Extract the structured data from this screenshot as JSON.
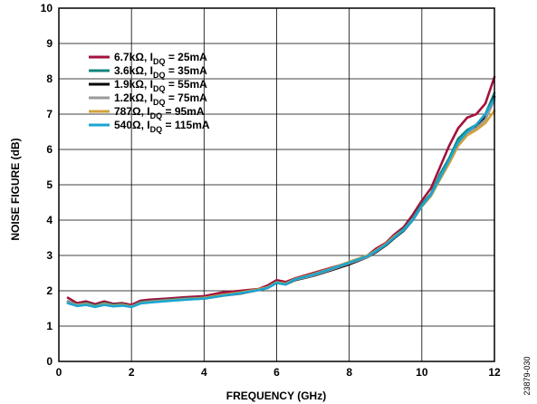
{
  "chart_data": {
    "type": "line",
    "xlabel": "FREQUENCY (GHz)",
    "ylabel": "NOISE FIGURE (dB)",
    "xlim": [
      0,
      12
    ],
    "ylim": [
      0,
      10
    ],
    "xticks": [
      "0",
      "2",
      "4",
      "6",
      "8",
      "10",
      "12"
    ],
    "yticks": [
      "0",
      "1",
      "2",
      "3",
      "4",
      "5",
      "6",
      "7",
      "8",
      "9",
      "10"
    ],
    "grid": true,
    "legend_position": "top-left",
    "figure_id": "23879-030",
    "x": [
      0.25,
      0.5,
      0.75,
      1.0,
      1.25,
      1.5,
      1.75,
      2.0,
      2.25,
      2.5,
      3.0,
      3.5,
      4.0,
      4.5,
      5.0,
      5.5,
      5.75,
      6.0,
      6.25,
      6.5,
      7.0,
      7.5,
      8.0,
      8.5,
      8.75,
      9.0,
      9.25,
      9.5,
      9.75,
      10.0,
      10.25,
      10.5,
      10.75,
      11.0,
      11.25,
      11.5,
      11.75,
      12.0
    ],
    "series": [
      {
        "name_main": "6.7kΩ, I",
        "name_sub": "DQ",
        "name_tail": " = 25mA",
        "color": "#A3123C",
        "values": [
          1.8,
          1.65,
          1.7,
          1.62,
          1.7,
          1.63,
          1.65,
          1.6,
          1.72,
          1.75,
          1.78,
          1.82,
          1.85,
          1.95,
          2.0,
          2.05,
          2.15,
          2.3,
          2.25,
          2.35,
          2.5,
          2.65,
          2.8,
          3.0,
          3.2,
          3.35,
          3.6,
          3.8,
          4.15,
          4.55,
          4.9,
          5.5,
          6.1,
          6.6,
          6.9,
          7.0,
          7.3,
          8.05
        ]
      },
      {
        "name_main": "3.6kΩ, I",
        "name_sub": "DQ",
        "name_tail": " = 35mA",
        "color": "#12857C",
        "values": [
          1.7,
          1.6,
          1.65,
          1.58,
          1.65,
          1.6,
          1.62,
          1.55,
          1.68,
          1.7,
          1.74,
          1.78,
          1.8,
          1.88,
          1.95,
          2.03,
          2.1,
          2.25,
          2.2,
          2.32,
          2.45,
          2.6,
          2.78,
          2.97,
          3.15,
          3.3,
          3.55,
          3.75,
          4.05,
          4.45,
          4.75,
          5.3,
          5.75,
          6.3,
          6.55,
          6.7,
          7.0,
          7.6
        ]
      },
      {
        "name_main": "1.9kΩ, I",
        "name_sub": "DQ",
        "name_tail": " = 55mA",
        "color": "#000000",
        "values": [
          1.65,
          1.58,
          1.62,
          1.55,
          1.62,
          1.57,
          1.6,
          1.55,
          1.66,
          1.68,
          1.72,
          1.76,
          1.78,
          1.86,
          1.92,
          2.02,
          2.08,
          2.22,
          2.18,
          2.3,
          2.42,
          2.58,
          2.75,
          2.95,
          3.1,
          3.28,
          3.5,
          3.7,
          4.0,
          4.4,
          4.7,
          5.2,
          5.65,
          6.15,
          6.5,
          6.65,
          6.9,
          7.5
        ]
      },
      {
        "name_main": "1.2kΩ, I",
        "name_sub": "DQ",
        "name_tail": " = 75mA",
        "color": "#9A9A9A",
        "values": [
          1.68,
          1.6,
          1.63,
          1.56,
          1.63,
          1.58,
          1.6,
          1.56,
          1.66,
          1.69,
          1.73,
          1.77,
          1.79,
          1.87,
          1.93,
          2.02,
          2.09,
          2.23,
          2.19,
          2.31,
          2.43,
          2.6,
          2.78,
          2.96,
          3.12,
          3.3,
          3.52,
          3.72,
          4.02,
          4.4,
          4.72,
          5.22,
          5.68,
          6.2,
          6.48,
          6.6,
          6.85,
          7.4
        ]
      },
      {
        "name_main": "787Ω, I",
        "name_sub": "DQ",
        "name_tail": " = 95mA",
        "color": "#D4A23A",
        "values": [
          1.66,
          1.58,
          1.62,
          1.55,
          1.62,
          1.57,
          1.6,
          1.55,
          1.65,
          1.68,
          1.72,
          1.76,
          1.8,
          1.88,
          1.95,
          2.04,
          2.1,
          2.24,
          2.2,
          2.33,
          2.47,
          2.63,
          2.82,
          3.0,
          3.15,
          3.32,
          3.55,
          3.72,
          4.0,
          4.38,
          4.68,
          5.15,
          5.6,
          6.1,
          6.4,
          6.55,
          6.75,
          7.1
        ]
      },
      {
        "name_main": "540Ω, I",
        "name_sub": "DQ",
        "name_tail": " = 115mA",
        "color": "#1BA5D1",
        "values": [
          1.65,
          1.57,
          1.6,
          1.54,
          1.6,
          1.56,
          1.58,
          1.54,
          1.64,
          1.67,
          1.71,
          1.75,
          1.78,
          1.86,
          1.93,
          2.02,
          2.08,
          2.22,
          2.18,
          2.32,
          2.45,
          2.62,
          2.8,
          2.98,
          3.13,
          3.3,
          3.52,
          3.72,
          4.0,
          4.4,
          4.72,
          5.2,
          5.7,
          6.2,
          6.5,
          6.7,
          7.0,
          7.45
        ]
      }
    ]
  }
}
